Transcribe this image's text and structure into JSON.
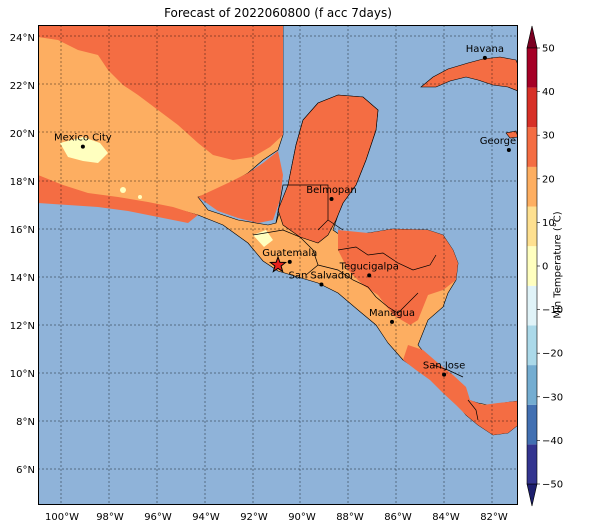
{
  "title": "Forecast of 2022060800 (f acc 7days)",
  "colorbar": {
    "label": "Min Temperature (°C)",
    "ticks": [
      "50",
      "40",
      "30",
      "20",
      "10",
      "0",
      "−10",
      "−20",
      "−30",
      "−40",
      "−50"
    ],
    "colors": [
      "#33348f",
      "#4270b2",
      "#74add1",
      "#abd9e9",
      "#e0f3f8",
      "#ffffbf",
      "#fee090",
      "#fdae61",
      "#f46d43",
      "#d73027",
      "#a50026"
    ],
    "extend_low_color": "#1d1f6e",
    "extend_high_color": "#7a0021"
  },
  "axes": {
    "lat_ticks": [
      "24°N",
      "22°N",
      "20°N",
      "18°N",
      "16°N",
      "14°N",
      "12°N",
      "10°N",
      "8°N",
      "6°N"
    ],
    "lon_ticks": [
      "100°W",
      "98°W",
      "96°W",
      "94°W",
      "92°W",
      "90°W",
      "88°W",
      "86°W",
      "84°W",
      "82°W"
    ]
  },
  "colors": {
    "ocean": "#8fb3d9",
    "land_hot": "#f46d43",
    "land_warm": "#fdae61",
    "land_mild": "#ffffbf",
    "border": "#000000",
    "grid": "#000000"
  },
  "cities": [
    {
      "name": "Mexico City",
      "lon": -99.13,
      "lat": 19.43
    },
    {
      "name": "Havana",
      "lon": -82.38,
      "lat": 23.13
    },
    {
      "name": "George Tow",
      "lon": -81.38,
      "lat": 19.29
    },
    {
      "name": "Belmopan",
      "lon": -88.77,
      "lat": 17.25
    },
    {
      "name": "Guatemala",
      "lon": -90.51,
      "lat": 14.63
    },
    {
      "name": "Tegucigalpa",
      "lon": -87.2,
      "lat": 14.07
    },
    {
      "name": "San Salvador",
      "lon": -89.19,
      "lat": 13.69
    },
    {
      "name": "Managua",
      "lon": -86.25,
      "lat": 12.13
    },
    {
      "name": "San Jose",
      "lon": -84.08,
      "lat": 9.93
    }
  ],
  "marker": {
    "name": "star",
    "lon": -91.0,
    "lat": 14.5
  }
}
